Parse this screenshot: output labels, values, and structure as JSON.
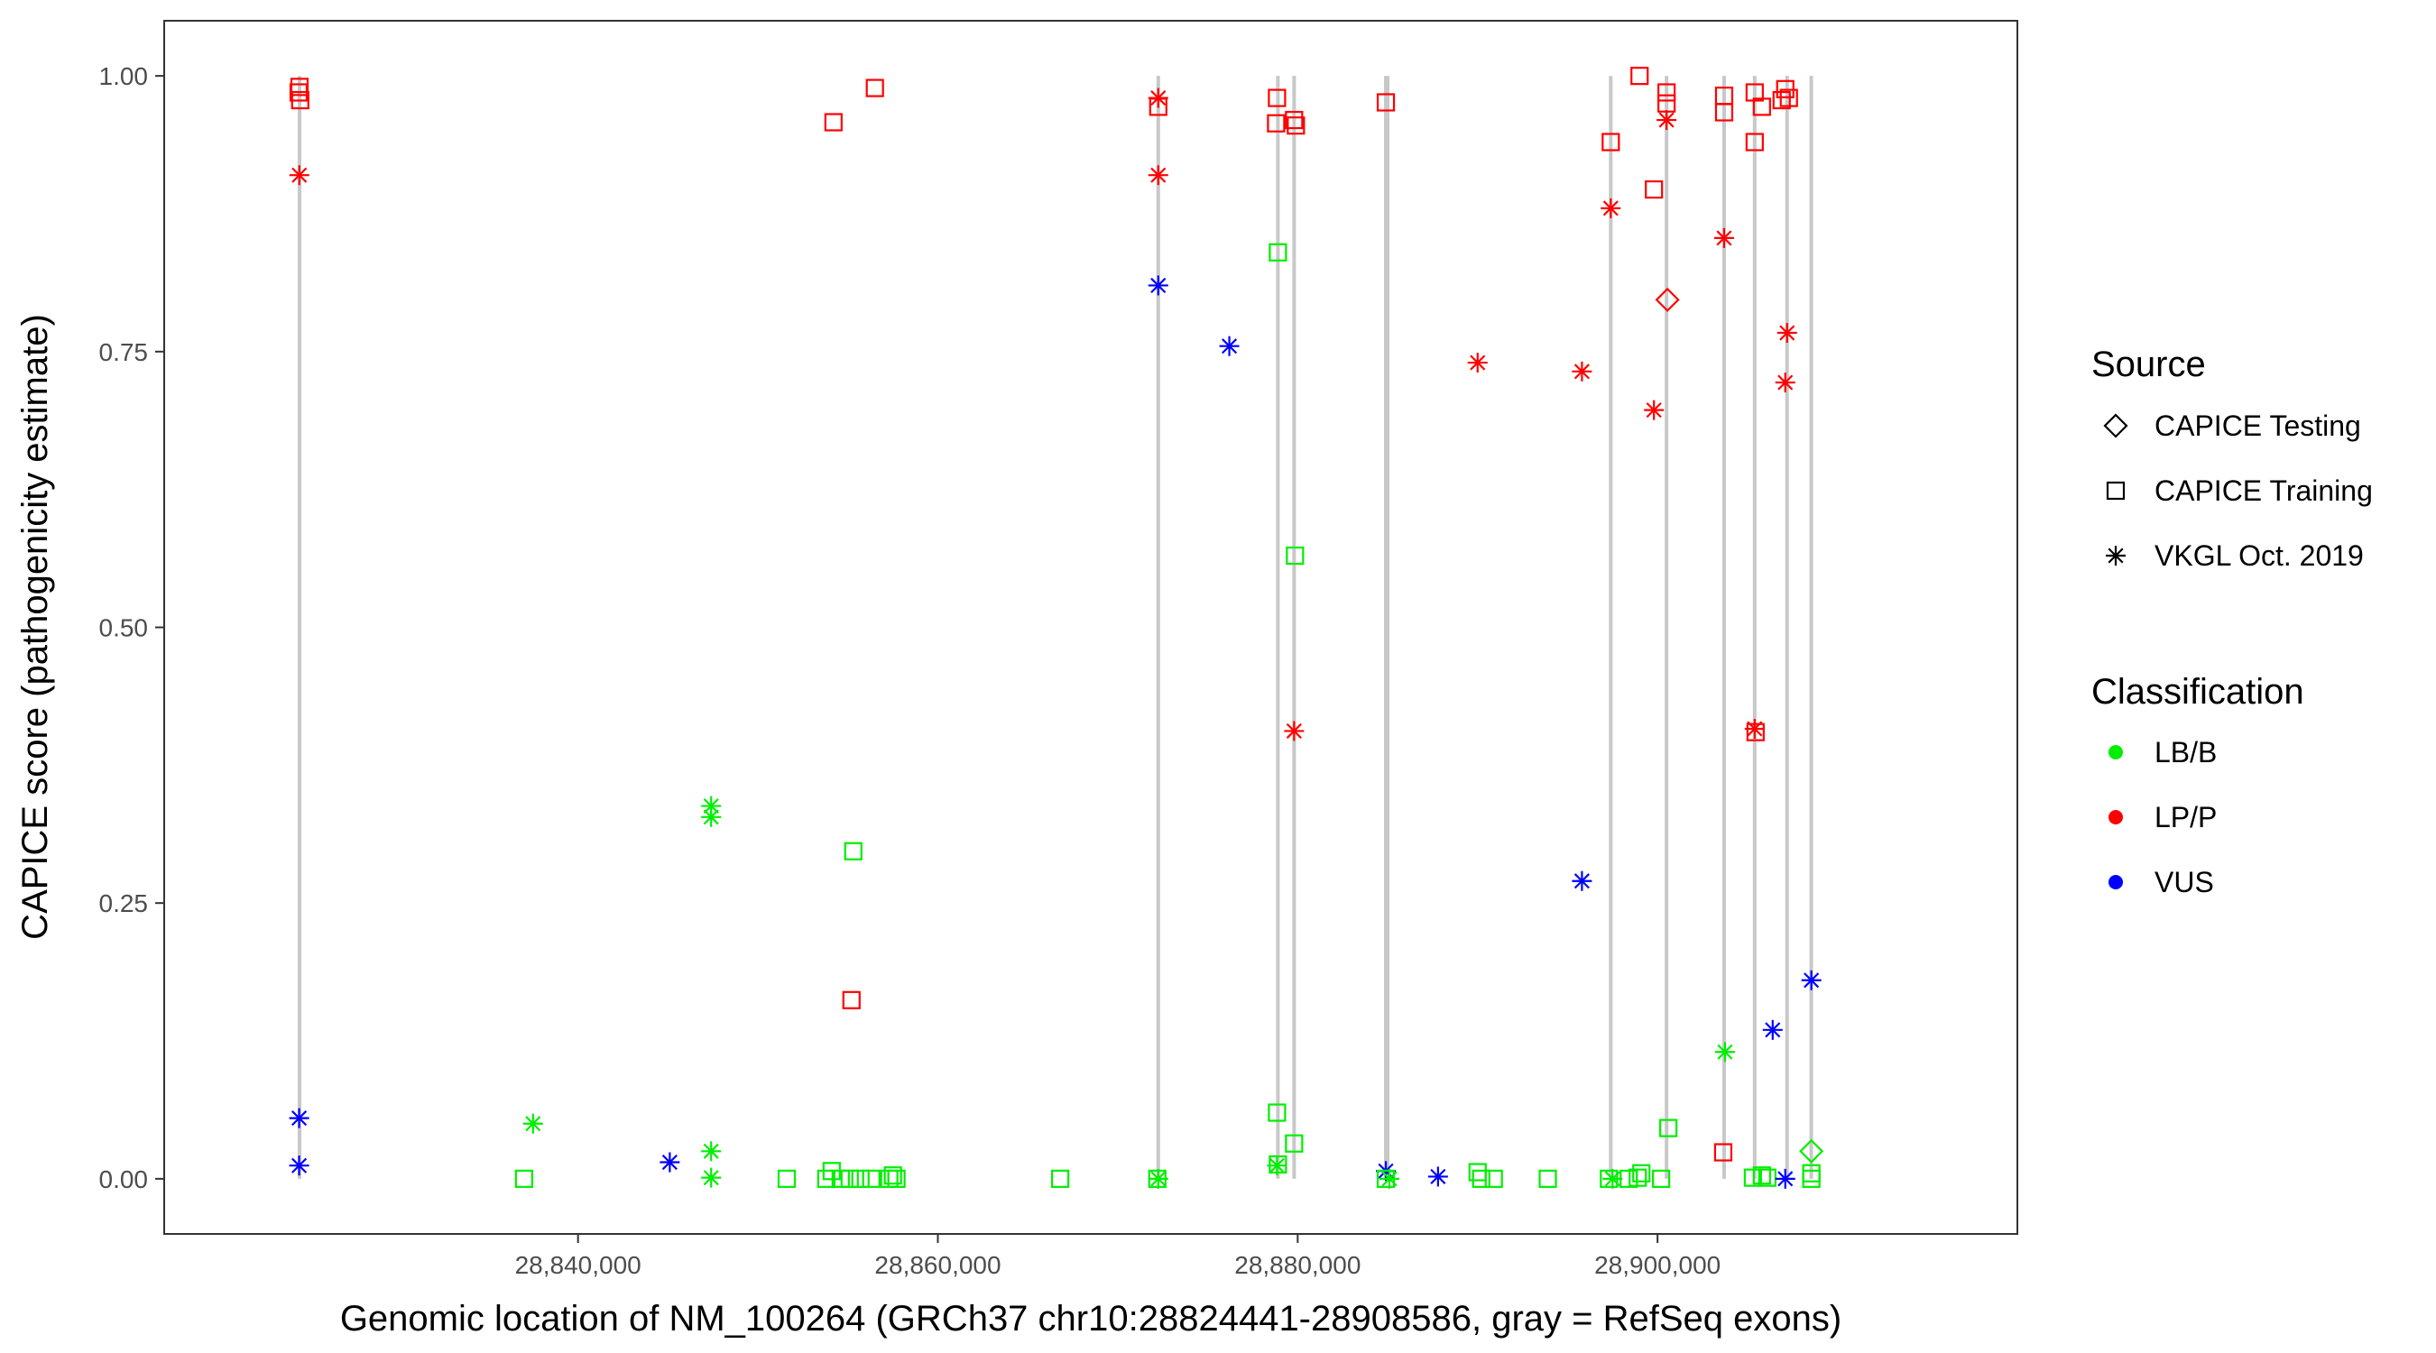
{
  "chart_data": {
    "type": "scatter",
    "xlabel": "Genomic location of NM_100264 (GRCh37 chr10:28824441-28908586, gray = RefSeq exons)",
    "ylabel": "CAPICE score (pathogenicity estimate)",
    "xlim": [
      28817000,
      28920000
    ],
    "ylim": [
      -0.05,
      1.05
    ],
    "xticks": [
      28840000,
      28860000,
      28880000,
      28900000
    ],
    "xtick_labels": [
      "28,840,000",
      "28,860,000",
      "28,880,000",
      "28,900,000"
    ],
    "yticks": [
      0.0,
      0.25,
      0.5,
      0.75,
      1.0
    ],
    "ytick_labels": [
      "0.00",
      "0.25",
      "0.50",
      "0.75",
      "1.00"
    ],
    "grid": false,
    "legend_position": "right",
    "exons": [
      [
        28824441,
        28824600
      ],
      [
        28872200,
        28872300
      ],
      [
        28878800,
        28879000
      ],
      [
        28879700,
        28879900
      ],
      [
        28884800,
        28885100
      ],
      [
        28897300,
        28897500
      ],
      [
        28900400,
        28900600
      ],
      [
        28903600,
        28903800
      ],
      [
        28905300,
        28905500
      ],
      [
        28907100,
        28907300
      ],
      [
        28908500,
        28908586
      ]
    ],
    "legend_source_title": "Source",
    "legend_class_title": "Classification",
    "sources": [
      {
        "key": "testing",
        "label": "CAPICE Testing",
        "shape": "diamond"
      },
      {
        "key": "training",
        "label": "CAPICE Training",
        "shape": "square"
      },
      {
        "key": "vkgl",
        "label": "VKGL Oct. 2019",
        "shape": "asterisk"
      }
    ],
    "classes": [
      {
        "key": "lbb",
        "label": "LB/B",
        "color": "#00ee00"
      },
      {
        "key": "lpp",
        "label": "LP/P",
        "color": "#ff0000"
      },
      {
        "key": "vus",
        "label": "VUS",
        "color": "#0000ff"
      }
    ],
    "points": [
      {
        "x": 28824470,
        "y": 0.985,
        "source": "training",
        "class": "lpp"
      },
      {
        "x": 28824520,
        "y": 0.99,
        "source": "training",
        "class": "lpp"
      },
      {
        "x": 28824560,
        "y": 0.978,
        "source": "training",
        "class": "lpp"
      },
      {
        "x": 28824510,
        "y": 0.91,
        "source": "vkgl",
        "class": "lpp"
      },
      {
        "x": 28824500,
        "y": 0.055,
        "source": "vkgl",
        "class": "vus"
      },
      {
        "x": 28824500,
        "y": 0.012,
        "source": "vkgl",
        "class": "vus"
      },
      {
        "x": 28837000,
        "y": 0.0,
        "source": "training",
        "class": "lbb"
      },
      {
        "x": 28837500,
        "y": 0.05,
        "source": "vkgl",
        "class": "lbb"
      },
      {
        "x": 28845100,
        "y": 0.015,
        "source": "vkgl",
        "class": "vus"
      },
      {
        "x": 28847400,
        "y": 0.338,
        "source": "vkgl",
        "class": "lbb"
      },
      {
        "x": 28847400,
        "y": 0.328,
        "source": "vkgl",
        "class": "lbb"
      },
      {
        "x": 28847400,
        "y": 0.025,
        "source": "vkgl",
        "class": "lbb"
      },
      {
        "x": 28847400,
        "y": 0.001,
        "source": "vkgl",
        "class": "lbb"
      },
      {
        "x": 28851600,
        "y": 0.0,
        "source": "training",
        "class": "lbb"
      },
      {
        "x": 28854200,
        "y": 0.958,
        "source": "training",
        "class": "lpp"
      },
      {
        "x": 28856500,
        "y": 0.989,
        "source": "training",
        "class": "lpp"
      },
      {
        "x": 28855300,
        "y": 0.297,
        "source": "training",
        "class": "lbb"
      },
      {
        "x": 28855200,
        "y": 0.162,
        "source": "training",
        "class": "lpp"
      },
      {
        "x": 28854100,
        "y": 0.007,
        "source": "training",
        "class": "lbb"
      },
      {
        "x": 28853800,
        "y": 0.0,
        "source": "training",
        "class": "lbb"
      },
      {
        "x": 28854600,
        "y": 0.0,
        "source": "training",
        "class": "lbb"
      },
      {
        "x": 28855100,
        "y": 0.0,
        "source": "training",
        "class": "lbb"
      },
      {
        "x": 28855700,
        "y": 0.0,
        "source": "training",
        "class": "lbb"
      },
      {
        "x": 28856300,
        "y": 0.0,
        "source": "training",
        "class": "lbb"
      },
      {
        "x": 28857300,
        "y": 0.0,
        "source": "training",
        "class": "lbb"
      },
      {
        "x": 28857700,
        "y": 0.0,
        "source": "training",
        "class": "lbb"
      },
      {
        "x": 28857500,
        "y": 0.003,
        "source": "training",
        "class": "lbb"
      },
      {
        "x": 28866800,
        "y": 0.0,
        "source": "training",
        "class": "lbb"
      },
      {
        "x": 28872250,
        "y": 0.972,
        "source": "training",
        "class": "lpp"
      },
      {
        "x": 28872250,
        "y": 0.98,
        "source": "vkgl",
        "class": "lpp"
      },
      {
        "x": 28872250,
        "y": 0.91,
        "source": "vkgl",
        "class": "lpp"
      },
      {
        "x": 28872250,
        "y": 0.81,
        "source": "vkgl",
        "class": "vus"
      },
      {
        "x": 28872200,
        "y": 0.0,
        "source": "training",
        "class": "lbb"
      },
      {
        "x": 28872250,
        "y": 0.0,
        "source": "vkgl",
        "class": "lbb"
      },
      {
        "x": 28876200,
        "y": 0.755,
        "source": "vkgl",
        "class": "vus"
      },
      {
        "x": 28878850,
        "y": 0.98,
        "source": "training",
        "class": "lpp"
      },
      {
        "x": 28878800,
        "y": 0.957,
        "source": "training",
        "class": "lpp"
      },
      {
        "x": 28878900,
        "y": 0.84,
        "source": "training",
        "class": "lbb"
      },
      {
        "x": 28878850,
        "y": 0.06,
        "source": "training",
        "class": "lbb"
      },
      {
        "x": 28878900,
        "y": 0.013,
        "source": "training",
        "class": "lbb"
      },
      {
        "x": 28878850,
        "y": 0.012,
        "source": "vkgl",
        "class": "lbb"
      },
      {
        "x": 28879800,
        "y": 0.96,
        "source": "training",
        "class": "lpp"
      },
      {
        "x": 28879900,
        "y": 0.955,
        "source": "training",
        "class": "lpp"
      },
      {
        "x": 28879850,
        "y": 0.565,
        "source": "training",
        "class": "lbb"
      },
      {
        "x": 28879800,
        "y": 0.406,
        "source": "vkgl",
        "class": "lpp"
      },
      {
        "x": 28879800,
        "y": 0.032,
        "source": "training",
        "class": "lbb"
      },
      {
        "x": 28884900,
        "y": 0.976,
        "source": "training",
        "class": "lpp"
      },
      {
        "x": 28884900,
        "y": 0.007,
        "source": "vkgl",
        "class": "vus"
      },
      {
        "x": 28884900,
        "y": 0.0,
        "source": "training",
        "class": "lbb"
      },
      {
        "x": 28885100,
        "y": 0.0,
        "source": "vkgl",
        "class": "lbb"
      },
      {
        "x": 28887800,
        "y": 0.002,
        "source": "vkgl",
        "class": "vus"
      },
      {
        "x": 28890000,
        "y": 0.74,
        "source": "vkgl",
        "class": "lpp"
      },
      {
        "x": 28890000,
        "y": 0.006,
        "source": "training",
        "class": "lbb"
      },
      {
        "x": 28890200,
        "y": 0.0,
        "source": "training",
        "class": "lbb"
      },
      {
        "x": 28890900,
        "y": 0.0,
        "source": "training",
        "class": "lbb"
      },
      {
        "x": 28893900,
        "y": 0.0,
        "source": "training",
        "class": "lbb"
      },
      {
        "x": 28895800,
        "y": 0.732,
        "source": "vkgl",
        "class": "lpp"
      },
      {
        "x": 28895800,
        "y": 0.27,
        "source": "vkgl",
        "class": "vus"
      },
      {
        "x": 28897400,
        "y": 0.94,
        "source": "training",
        "class": "lpp"
      },
      {
        "x": 28897400,
        "y": 0.88,
        "source": "vkgl",
        "class": "lpp"
      },
      {
        "x": 28897300,
        "y": 0.0,
        "source": "training",
        "class": "lbb"
      },
      {
        "x": 28897500,
        "y": 0.0,
        "source": "vkgl",
        "class": "lbb"
      },
      {
        "x": 28898400,
        "y": 0.0,
        "source": "training",
        "class": "lbb"
      },
      {
        "x": 28898900,
        "y": 0.001,
        "source": "training",
        "class": "lbb"
      },
      {
        "x": 28899100,
        "y": 0.005,
        "source": "training",
        "class": "lbb"
      },
      {
        "x": 28899000,
        "y": 1.0,
        "source": "training",
        "class": "lpp"
      },
      {
        "x": 28899800,
        "y": 0.897,
        "source": "training",
        "class": "lpp"
      },
      {
        "x": 28899800,
        "y": 0.697,
        "source": "vkgl",
        "class": "lpp"
      },
      {
        "x": 28900200,
        "y": 0.0,
        "source": "training",
        "class": "lbb"
      },
      {
        "x": 28900500,
        "y": 0.985,
        "source": "training",
        "class": "lpp"
      },
      {
        "x": 28900500,
        "y": 0.975,
        "source": "training",
        "class": "lpp"
      },
      {
        "x": 28900500,
        "y": 0.96,
        "source": "vkgl",
        "class": "lpp"
      },
      {
        "x": 28900550,
        "y": 0.797,
        "source": "testing",
        "class": "lpp"
      },
      {
        "x": 28900600,
        "y": 0.046,
        "source": "training",
        "class": "lbb"
      },
      {
        "x": 28903700,
        "y": 0.982,
        "source": "training",
        "class": "lpp"
      },
      {
        "x": 28903700,
        "y": 0.967,
        "source": "training",
        "class": "lpp"
      },
      {
        "x": 28903700,
        "y": 0.853,
        "source": "vkgl",
        "class": "lpp"
      },
      {
        "x": 28903750,
        "y": 0.115,
        "source": "vkgl",
        "class": "lbb"
      },
      {
        "x": 28903650,
        "y": 0.024,
        "source": "training",
        "class": "lpp"
      },
      {
        "x": 28905400,
        "y": 0.985,
        "source": "training",
        "class": "lpp"
      },
      {
        "x": 28905400,
        "y": 0.94,
        "source": "training",
        "class": "lpp"
      },
      {
        "x": 28905800,
        "y": 0.972,
        "source": "training",
        "class": "lpp"
      },
      {
        "x": 28905400,
        "y": 0.408,
        "source": "vkgl",
        "class": "lpp"
      },
      {
        "x": 28905450,
        "y": 0.405,
        "source": "training",
        "class": "lpp"
      },
      {
        "x": 28905300,
        "y": 0.001,
        "source": "training",
        "class": "lbb"
      },
      {
        "x": 28905800,
        "y": 0.003,
        "source": "training",
        "class": "lbb"
      },
      {
        "x": 28906100,
        "y": 0.001,
        "source": "training",
        "class": "lbb"
      },
      {
        "x": 28906400,
        "y": 0.135,
        "source": "vkgl",
        "class": "vus"
      },
      {
        "x": 28907100,
        "y": 0.988,
        "source": "training",
        "class": "lpp"
      },
      {
        "x": 28907300,
        "y": 0.98,
        "source": "training",
        "class": "lpp"
      },
      {
        "x": 28906900,
        "y": 0.978,
        "source": "training",
        "class": "lpp"
      },
      {
        "x": 28907200,
        "y": 0.767,
        "source": "vkgl",
        "class": "lpp"
      },
      {
        "x": 28907100,
        "y": 0.722,
        "source": "vkgl",
        "class": "lpp"
      },
      {
        "x": 28907100,
        "y": 0.0,
        "source": "vkgl",
        "class": "vus"
      },
      {
        "x": 28908550,
        "y": 0.18,
        "source": "vkgl",
        "class": "vus"
      },
      {
        "x": 28908550,
        "y": 0.025,
        "source": "testing",
        "class": "lbb"
      },
      {
        "x": 28908550,
        "y": 0.005,
        "source": "training",
        "class": "lbb"
      },
      {
        "x": 28908550,
        "y": 0.0,
        "source": "training",
        "class": "lbb"
      }
    ]
  }
}
